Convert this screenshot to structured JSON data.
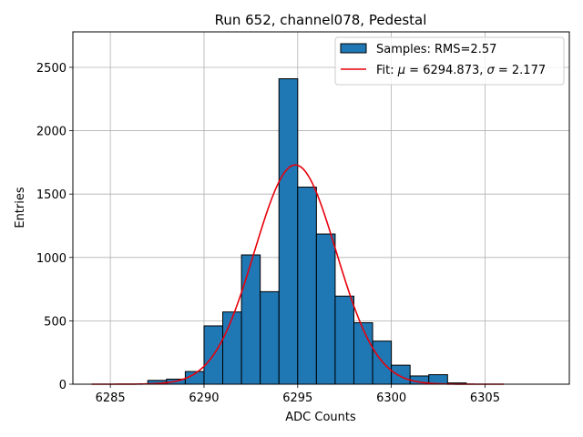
{
  "chart_data": {
    "type": "histogram",
    "title": "Run 652, channel078, Pedestal",
    "xlabel": "ADC Counts",
    "ylabel": "Entries",
    "xlim": [
      6283,
      6309.5
    ],
    "ylim": [
      0,
      2780
    ],
    "xticks": [
      6285,
      6290,
      6295,
      6300,
      6305
    ],
    "yticks": [
      0,
      500,
      1000,
      1500,
      2000,
      2500
    ],
    "grid": true,
    "bar_color": "#1f77b4",
    "bar_edge_color": "#000000",
    "fit_color": "#e8000b",
    "bin_width": 1,
    "bins": [
      {
        "left": 6287,
        "count": 30
      },
      {
        "left": 6288,
        "count": 40
      },
      {
        "left": 6289,
        "count": 100
      },
      {
        "left": 6290,
        "count": 460
      },
      {
        "left": 6291,
        "count": 570
      },
      {
        "left": 6292,
        "count": 1020
      },
      {
        "left": 6293,
        "count": 730
      },
      {
        "left": 6294,
        "count": 2410
      },
      {
        "left": 6295,
        "count": 1555
      },
      {
        "left": 6296,
        "count": 1185
      },
      {
        "left": 6297,
        "count": 695
      },
      {
        "left": 6298,
        "count": 485
      },
      {
        "left": 6299,
        "count": 340
      },
      {
        "left": 6300,
        "count": 150
      },
      {
        "left": 6301,
        "count": 65
      },
      {
        "left": 6302,
        "count": 75
      },
      {
        "left": 6303,
        "count": 10
      }
    ],
    "fit": {
      "type": "gaussian",
      "mu": 6294.873,
      "sigma": 2.177,
      "amplitude": 1730,
      "x_range": [
        6284,
        6306
      ]
    },
    "legend": {
      "position": "top-right",
      "samples_label": "Samples: RMS=2.57",
      "fit_label_prefix": "Fit: ",
      "fit_mu_symbol": "μ",
      "fit_mu_value": " = 6294.873, ",
      "fit_sigma_symbol": "σ",
      "fit_sigma_value": " = 2.177"
    }
  }
}
